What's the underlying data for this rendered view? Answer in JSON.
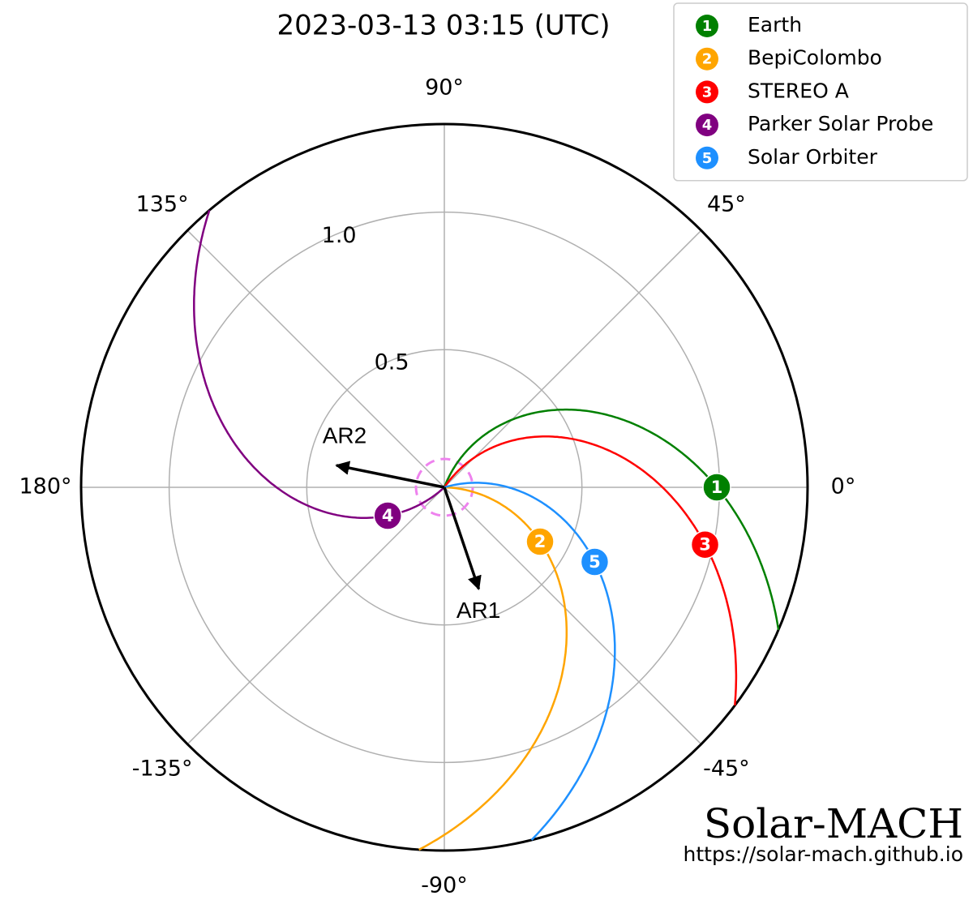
{
  "chart_data": {
    "type": "polar",
    "title": "2023-03-13 03:15 (UTC)",
    "rlim": [
      0,
      1.32
    ],
    "rticks": [
      0.5,
      {
        "value": 1,
        "label": "1.0"
      }
    ],
    "thetaticks": [
      {
        "value": 0,
        "label": "0°"
      },
      {
        "value": 45,
        "label": "45°"
      },
      {
        "value": 90,
        "label": "90°"
      },
      {
        "value": 135,
        "label": "135°"
      },
      {
        "value": 180,
        "label": "180°"
      },
      {
        "value": -135,
        "label": "-135°"
      },
      {
        "value": -90,
        "label": "-90°"
      },
      {
        "value": -45,
        "label": "-45°"
      }
    ],
    "grid": true,
    "legend": "upper right",
    "series": [
      {
        "name": "Earth",
        "marker_label": "1",
        "color": "#008000",
        "r": 0.99,
        "theta": 0
      },
      {
        "name": "BepiColombo",
        "marker_label": "2",
        "color": "#ffa500",
        "r": 0.4,
        "theta": -29.6
      },
      {
        "name": "STEREO A",
        "marker_label": "3",
        "color": "#ff0000",
        "r": 0.97,
        "theta": -12.4
      },
      {
        "name": "Parker Solar Probe",
        "marker_label": "4",
        "color": "#800080",
        "r": 0.23,
        "theta": -153.4
      },
      {
        "name": "Solar Orbiter",
        "marker_label": "5",
        "color": "#1e90ff",
        "r": 0.61,
        "theta": -26.4
      }
    ],
    "arrows": [
      {
        "label": "AR1",
        "r": 0.39,
        "theta": -71.3
      },
      {
        "label": "AR2",
        "r": 0.4,
        "theta": 168.5
      }
    ],
    "annotations": {
      "brand": "Solar-MACH",
      "url": "https://solar-mach.github.io"
    }
  }
}
